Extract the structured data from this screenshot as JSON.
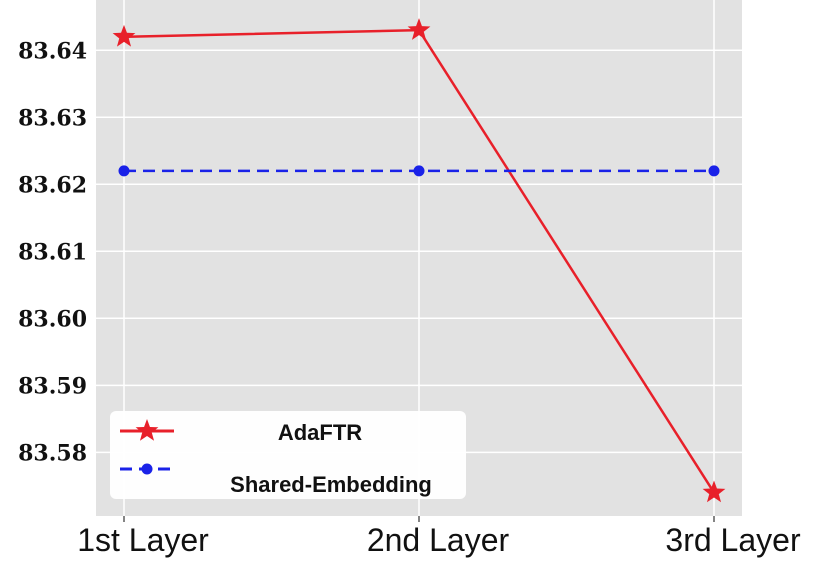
{
  "chart_data": {
    "type": "line",
    "categories": [
      "1st Layer",
      "2nd Layer",
      "3rd Layer"
    ],
    "series": [
      {
        "name": "AdaFTR",
        "values": [
          83.642,
          83.643,
          83.574
        ],
        "color": "#e8202a",
        "marker": "star",
        "line_style": "solid"
      },
      {
        "name": "Shared-Embedding",
        "values": [
          83.622,
          83.622,
          83.622
        ],
        "color": "#1a22e8",
        "marker": "circle",
        "line_style": "dashed"
      }
    ],
    "yticks": [
      83.58,
      83.59,
      83.6,
      83.61,
      83.62,
      83.63,
      83.64
    ],
    "ytick_labels": [
      "83.58",
      "83.59",
      "83.60",
      "83.61",
      "83.62",
      "83.63",
      "83.64"
    ],
    "ylim": [
      83.5705,
      83.6475
    ],
    "title": "",
    "xlabel": "",
    "ylabel": "",
    "grid": true,
    "background": "#e2e2e2",
    "legend_position": "lower-left"
  }
}
